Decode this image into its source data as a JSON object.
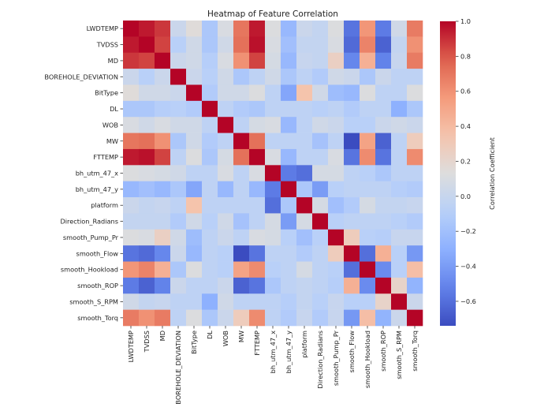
{
  "chart_data": {
    "type": "heatmap",
    "title": "Heatmap of Feature Correlation",
    "xlabel": "",
    "ylabel": "",
    "colormap": "coolwarm",
    "colorbar": {
      "label": "Correlation Coefficient",
      "vmin": -0.74,
      "vmax": 1.0,
      "ticks": [
        1.0,
        0.8,
        0.6,
        0.4,
        0.2,
        0.0,
        -0.2,
        -0.4,
        -0.6
      ],
      "tick_labels": [
        "1.0",
        "0.8",
        "0.6",
        "0.4",
        "0.2",
        "0.0",
        "−0.2",
        "−0.4",
        "−0.6"
      ],
      "placement": "right"
    },
    "labels": [
      "LWDTEMP",
      "TVDSS",
      "MD",
      "BOREHOLE_DEVIATION",
      "BitType",
      "DL",
      "WOB",
      "MW",
      "FTTEMP",
      "bh_utm_47_x",
      "bh_utm_47_y",
      "platform",
      "Direction_Radians",
      "smooth_Pump_Pr",
      "smooth_Flow",
      "smooth_Hookload",
      "smooth_ROP",
      "smooth_S_RPM",
      "smooth_Torq"
    ],
    "matrix": [
      [
        1.0,
        0.95,
        0.88,
        0.02,
        0.15,
        -0.15,
        0.1,
        0.7,
        0.95,
        0.12,
        -0.25,
        0.02,
        -0.02,
        0.12,
        -0.58,
        0.58,
        -0.55,
        0.05,
        0.68
      ],
      [
        0.95,
        1.0,
        0.85,
        -0.08,
        0.05,
        -0.15,
        0.05,
        0.72,
        0.97,
        0.1,
        -0.2,
        -0.02,
        -0.02,
        0.1,
        -0.62,
        0.65,
        -0.65,
        -0.02,
        0.6
      ],
      [
        0.88,
        0.85,
        1.0,
        0.02,
        0.05,
        -0.1,
        0.1,
        0.6,
        0.85,
        0.08,
        -0.25,
        0.0,
        -0.02,
        0.25,
        -0.5,
        0.45,
        -0.52,
        0.0,
        0.68
      ],
      [
        0.02,
        -0.08,
        0.02,
        1.0,
        0.02,
        -0.08,
        0.05,
        -0.15,
        -0.05,
        0.05,
        -0.15,
        -0.05,
        -0.12,
        0.05,
        0.02,
        -0.15,
        0.02,
        -0.05,
        -0.05
      ],
      [
        0.15,
        0.05,
        0.05,
        0.02,
        1.0,
        -0.12,
        0.05,
        0.05,
        0.12,
        -0.05,
        -0.35,
        0.35,
        0.05,
        -0.22,
        -0.25,
        0.12,
        -0.05,
        -0.05,
        0.12
      ],
      [
        -0.15,
        -0.15,
        -0.1,
        -0.08,
        -0.12,
        1.0,
        -0.05,
        -0.12,
        -0.15,
        -0.05,
        -0.05,
        -0.05,
        -0.08,
        -0.05,
        -0.12,
        -0.05,
        -0.05,
        -0.3,
        -0.15
      ],
      [
        0.1,
        0.05,
        0.1,
        0.05,
        0.05,
        -0.05,
        1.0,
        -0.05,
        0.08,
        0.1,
        -0.25,
        -0.05,
        0.05,
        0.02,
        -0.08,
        -0.08,
        0.02,
        0.05,
        0.02
      ],
      [
        0.7,
        0.72,
        0.6,
        -0.15,
        0.05,
        -0.12,
        -0.05,
        1.0,
        0.72,
        -0.05,
        -0.05,
        -0.05,
        -0.18,
        -0.05,
        -0.74,
        0.52,
        -0.65,
        -0.05,
        0.28
      ],
      [
        0.95,
        0.97,
        0.85,
        -0.05,
        0.12,
        -0.15,
        0.08,
        0.72,
        1.0,
        0.1,
        -0.25,
        -0.05,
        -0.05,
        0.1,
        -0.58,
        0.62,
        -0.58,
        -0.05,
        0.62
      ],
      [
        0.12,
        0.1,
        0.08,
        0.05,
        -0.05,
        -0.05,
        0.1,
        -0.05,
        0.1,
        1.0,
        -0.55,
        -0.6,
        0.08,
        0.08,
        -0.05,
        -0.08,
        -0.15,
        -0.05,
        -0.05
      ],
      [
        -0.25,
        -0.2,
        -0.25,
        -0.15,
        -0.35,
        -0.05,
        -0.25,
        -0.05,
        -0.25,
        -0.55,
        1.0,
        -0.15,
        -0.4,
        -0.08,
        -0.05,
        -0.05,
        -0.05,
        -0.1,
        -0.12
      ],
      [
        0.02,
        -0.02,
        0.0,
        -0.05,
        0.35,
        -0.05,
        -0.05,
        -0.05,
        -0.05,
        -0.6,
        -0.15,
        1.0,
        0.08,
        -0.2,
        -0.12,
        0.08,
        -0.02,
        -0.02,
        0.0
      ],
      [
        -0.02,
        -0.02,
        -0.02,
        -0.12,
        0.05,
        -0.08,
        0.05,
        -0.18,
        -0.05,
        0.08,
        -0.4,
        0.08,
        1.0,
        -0.08,
        -0.05,
        -0.05,
        -0.05,
        -0.08,
        -0.12
      ],
      [
        0.12,
        0.1,
        0.25,
        0.05,
        -0.22,
        -0.05,
        0.02,
        -0.05,
        0.1,
        0.08,
        -0.08,
        -0.2,
        -0.08,
        1.0,
        0.28,
        -0.08,
        -0.1,
        0.0,
        0.0
      ],
      [
        -0.58,
        -0.62,
        -0.5,
        0.02,
        -0.25,
        -0.05,
        -0.08,
        -0.74,
        -0.58,
        -0.05,
        -0.05,
        -0.12,
        -0.05,
        0.28,
        1.0,
        -0.6,
        0.45,
        -0.08,
        -0.42
      ],
      [
        0.58,
        0.65,
        0.45,
        -0.15,
        0.12,
        -0.05,
        -0.08,
        0.52,
        0.62,
        -0.08,
        -0.05,
        0.08,
        -0.05,
        -0.08,
        -0.6,
        1.0,
        -0.48,
        -0.08,
        0.38
      ],
      [
        -0.55,
        -0.65,
        -0.52,
        0.02,
        -0.05,
        -0.05,
        0.02,
        -0.65,
        -0.58,
        -0.15,
        -0.05,
        -0.02,
        -0.05,
        -0.1,
        0.45,
        -0.48,
        1.0,
        0.22,
        -0.28
      ],
      [
        0.05,
        -0.02,
        0.0,
        -0.05,
        -0.05,
        -0.3,
        0.05,
        -0.05,
        -0.05,
        -0.05,
        -0.1,
        -0.02,
        -0.08,
        0.0,
        -0.08,
        -0.08,
        0.22,
        1.0,
        0.02
      ],
      [
        0.68,
        0.6,
        0.68,
        -0.05,
        0.12,
        -0.15,
        0.02,
        0.28,
        0.62,
        -0.05,
        -0.12,
        0.0,
        -0.12,
        0.0,
        -0.42,
        0.38,
        -0.28,
        0.02,
        1.0
      ]
    ]
  }
}
